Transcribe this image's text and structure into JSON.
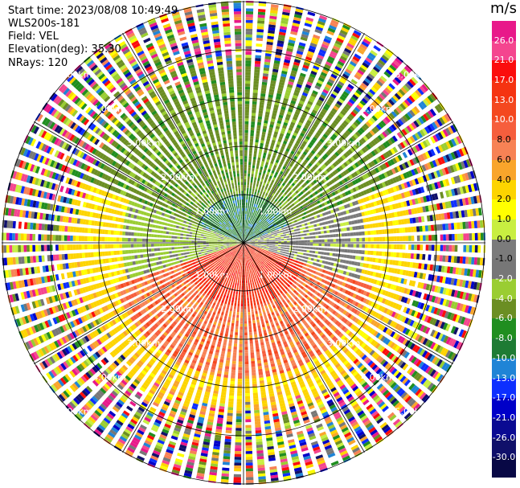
{
  "header": {
    "start_time": "Start time: 2023/08/08 10:49:49",
    "station": "WLS200s-181",
    "field": "Field: VEL",
    "elevation": "Elevation(deg): 35.30",
    "nrays": "NRays: 120"
  },
  "colorbar": {
    "unit": "m/s",
    "ticks": [
      "26.0",
      "21.0",
      "17.0",
      "13.0",
      "10.0",
      "8.0",
      "6.0",
      "4.0",
      "2.0",
      "1.0",
      "0.0",
      "-1.0",
      "-2.0",
      "-4.0",
      "-6.0",
      "-8.0",
      "-10.0",
      "-13.0",
      "-17.0",
      "-21.0",
      "-26.0",
      "-30.0"
    ],
    "colors": [
      "#e8198a",
      "#f4458f",
      "#fb0d0d",
      "#f53311",
      "#f4481f",
      "#f65e3d",
      "#f78255",
      "#f9a52b",
      "#fdd400",
      "#ffff00",
      "#c8ee41",
      "#7b7b7b",
      "#777777",
      "#9acd32",
      "#6b8e23",
      "#208e20",
      "#1e7b34",
      "#1f84d6",
      "#0d2fff",
      "#0000c8",
      "#0a0a92",
      "#10106a",
      "#080845"
    ]
  },
  "chart_data": {
    "type": "heatmap",
    "title": "",
    "field": "VEL",
    "unit": "m/s",
    "n_rays": 120,
    "range_rings_km": [
      1.0,
      2.0,
      3.0,
      4.0,
      5.0
    ],
    "ring_labels": [
      "1.00km",
      "2.00km",
      "3.00km",
      "4.00km",
      "5.00km"
    ],
    "value_range": [
      -30.0,
      26.0
    ],
    "sectors": [
      {
        "region": "north",
        "range_km": [
          0,
          1.0
        ],
        "velocity": -9
      },
      {
        "region": "north",
        "range_km": [
          1.0,
          3.0
        ],
        "velocity": -6
      },
      {
        "region": "east-west",
        "range_km": [
          0,
          2.5
        ],
        "velocity": -1
      },
      {
        "region": "south",
        "range_km": [
          0,
          1.3
        ],
        "velocity": 15
      },
      {
        "region": "south",
        "range_km": [
          1.3,
          2.8
        ],
        "velocity": 8
      },
      {
        "region": "south",
        "range_km": [
          2.8,
          3.6
        ],
        "velocity": 3
      },
      {
        "region": "all",
        "range_km": [
          3.6,
          6.0
        ],
        "velocity": "noise"
      }
    ]
  }
}
